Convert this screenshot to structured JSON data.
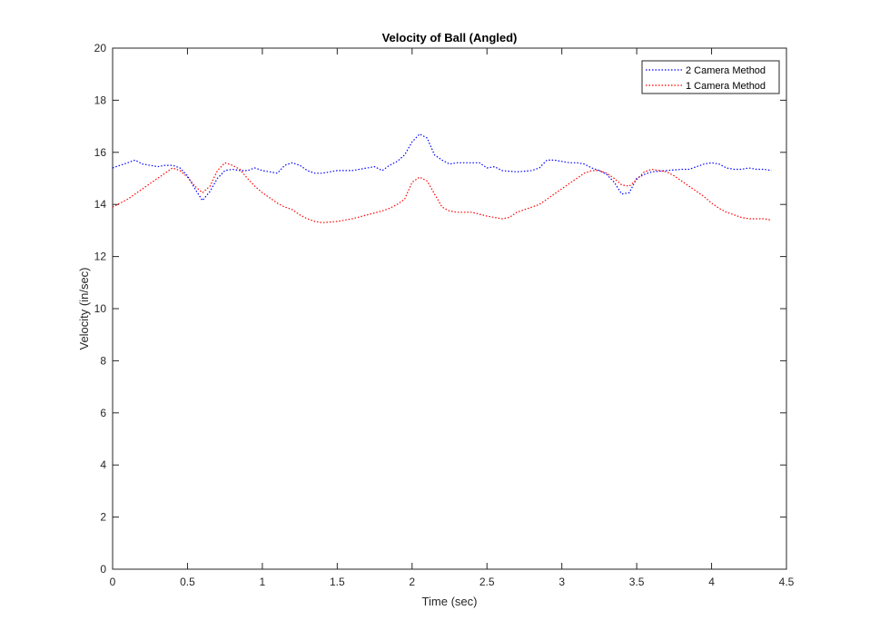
{
  "chart_data": {
    "type": "line",
    "title": "Velocity of Ball (Angled)",
    "xlabel": "Time (sec)",
    "ylabel": "Velocity (in/sec)",
    "xlim": [
      0,
      4.5
    ],
    "ylim": [
      0,
      20
    ],
    "xticks": [
      0,
      0.5,
      1,
      1.5,
      2,
      2.5,
      3,
      3.5,
      4,
      4.5
    ],
    "xtick_labels": [
      "0",
      "0.5",
      "1",
      "1.5",
      "2",
      "2.5",
      "3",
      "3.5",
      "4",
      "4.5"
    ],
    "yticks": [
      0,
      2,
      4,
      6,
      8,
      10,
      12,
      14,
      16,
      18,
      20
    ],
    "ytick_labels": [
      "0",
      "2",
      "4",
      "6",
      "8",
      "10",
      "12",
      "14",
      "16",
      "18",
      "20"
    ],
    "grid": false,
    "legend_position": "top-right",
    "series": [
      {
        "name": "2 Camera Method",
        "color": "#0000ff",
        "line_style": "dotted",
        "x": [
          0,
          0.05,
          0.1,
          0.15,
          0.2,
          0.25,
          0.3,
          0.35,
          0.4,
          0.45,
          0.5,
          0.55,
          0.6,
          0.65,
          0.7,
          0.75,
          0.8,
          0.85,
          0.9,
          0.95,
          1.0,
          1.05,
          1.1,
          1.15,
          1.2,
          1.25,
          1.3,
          1.35,
          1.4,
          1.5,
          1.6,
          1.7,
          1.75,
          1.8,
          1.85,
          1.9,
          1.95,
          2.0,
          2.05,
          2.1,
          2.15,
          2.2,
          2.25,
          2.3,
          2.4,
          2.45,
          2.5,
          2.55,
          2.6,
          2.7,
          2.8,
          2.85,
          2.9,
          2.95,
          3.0,
          3.05,
          3.1,
          3.15,
          3.2,
          3.25,
          3.3,
          3.35,
          3.4,
          3.45,
          3.5,
          3.55,
          3.6,
          3.7,
          3.8,
          3.85,
          3.9,
          3.95,
          4.0,
          4.05,
          4.1,
          4.15,
          4.2,
          4.25,
          4.3,
          4.35,
          4.4
        ],
        "y": [
          15.4,
          15.5,
          15.6,
          15.7,
          15.55,
          15.5,
          15.45,
          15.5,
          15.5,
          15.4,
          15.1,
          14.6,
          14.15,
          14.5,
          15.0,
          15.3,
          15.35,
          15.3,
          15.3,
          15.4,
          15.3,
          15.25,
          15.2,
          15.5,
          15.6,
          15.5,
          15.3,
          15.2,
          15.2,
          15.3,
          15.3,
          15.4,
          15.45,
          15.3,
          15.5,
          15.65,
          15.9,
          16.4,
          16.7,
          16.55,
          15.9,
          15.7,
          15.55,
          15.6,
          15.6,
          15.6,
          15.4,
          15.45,
          15.3,
          15.25,
          15.3,
          15.4,
          15.7,
          15.7,
          15.65,
          15.6,
          15.6,
          15.55,
          15.4,
          15.3,
          15.15,
          14.85,
          14.4,
          14.45,
          15.0,
          15.15,
          15.25,
          15.3,
          15.35,
          15.35,
          15.45,
          15.55,
          15.6,
          15.55,
          15.4,
          15.35,
          15.35,
          15.4,
          15.35,
          15.35,
          15.3
        ]
      },
      {
        "name": "1 Camera Method",
        "color": "#ff0000",
        "line_style": "dotted",
        "x": [
          0,
          0.05,
          0.1,
          0.15,
          0.2,
          0.25,
          0.3,
          0.35,
          0.4,
          0.45,
          0.5,
          0.55,
          0.6,
          0.65,
          0.7,
          0.75,
          0.8,
          0.85,
          0.9,
          0.95,
          1.0,
          1.05,
          1.1,
          1.15,
          1.2,
          1.25,
          1.3,
          1.35,
          1.4,
          1.5,
          1.6,
          1.7,
          1.8,
          1.85,
          1.9,
          1.95,
          2.0,
          2.05,
          2.1,
          2.15,
          2.2,
          2.25,
          2.3,
          2.4,
          2.5,
          2.55,
          2.6,
          2.65,
          2.7,
          2.8,
          2.85,
          2.9,
          2.95,
          3.0,
          3.05,
          3.1,
          3.15,
          3.2,
          3.25,
          3.3,
          3.35,
          3.4,
          3.45,
          3.5,
          3.55,
          3.6,
          3.65,
          3.7,
          3.75,
          3.8,
          3.85,
          3.9,
          3.95,
          4.0,
          4.05,
          4.1,
          4.15,
          4.2,
          4.25,
          4.3,
          4.35,
          4.4
        ],
        "y": [
          13.9,
          14.05,
          14.2,
          14.4,
          14.6,
          14.8,
          15.0,
          15.2,
          15.4,
          15.3,
          15.05,
          14.7,
          14.45,
          14.7,
          15.3,
          15.6,
          15.5,
          15.35,
          15.0,
          14.7,
          14.45,
          14.25,
          14.05,
          13.9,
          13.8,
          13.6,
          13.45,
          13.35,
          13.3,
          13.35,
          13.45,
          13.6,
          13.75,
          13.85,
          14.0,
          14.2,
          14.85,
          15.05,
          14.9,
          14.4,
          13.9,
          13.75,
          13.7,
          13.7,
          13.55,
          13.5,
          13.45,
          13.5,
          13.7,
          13.9,
          14.0,
          14.2,
          14.4,
          14.6,
          14.8,
          15.0,
          15.2,
          15.3,
          15.3,
          15.2,
          15.0,
          14.75,
          14.7,
          14.95,
          15.25,
          15.35,
          15.3,
          15.25,
          15.1,
          14.9,
          14.7,
          14.5,
          14.3,
          14.05,
          13.85,
          13.7,
          13.6,
          13.5,
          13.45,
          13.45,
          13.45,
          13.4
        ]
      }
    ]
  }
}
